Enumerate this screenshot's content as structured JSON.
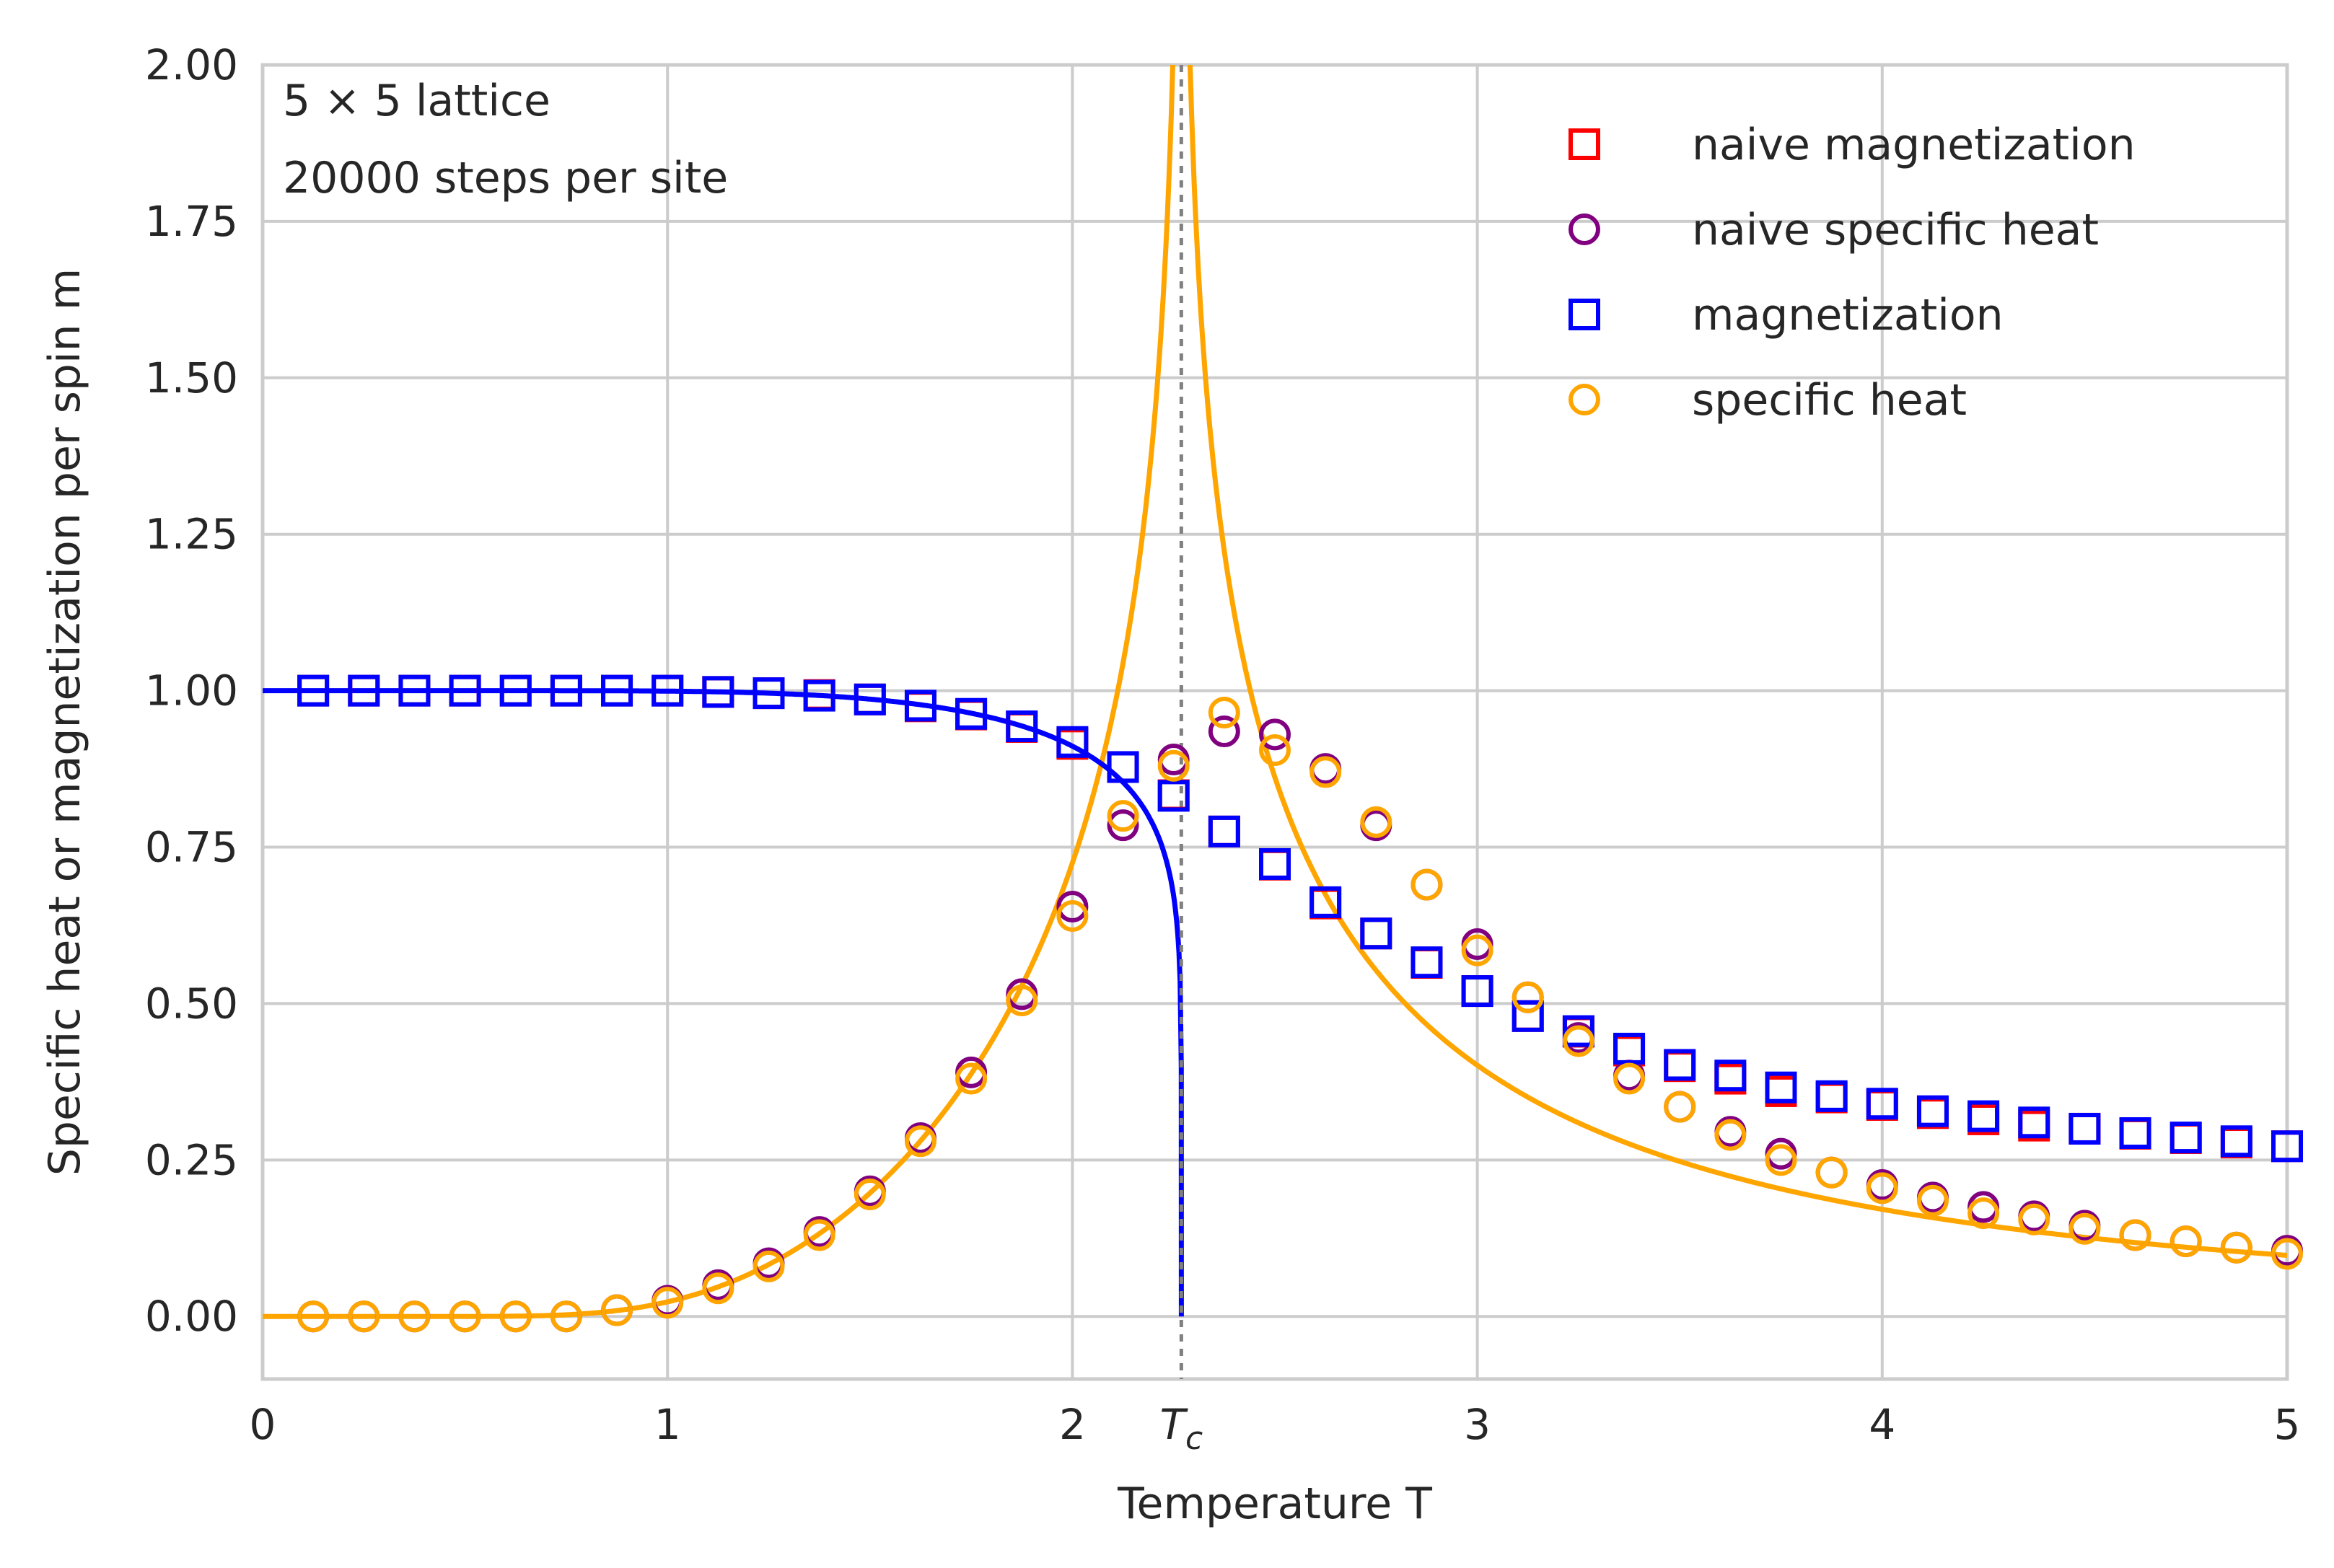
{
  "chart_data": {
    "type": "scatter",
    "xlabel": "Temperature T",
    "ylabel": "Specific heat or magnetization per spin m",
    "xlim": [
      0,
      5
    ],
    "ylim": [
      -0.1,
      2.0
    ],
    "grid": true,
    "legend_position": "top-right",
    "x_ticks": [
      {
        "value": 0,
        "label": "0"
      },
      {
        "value": 1,
        "label": "1"
      },
      {
        "value": 2,
        "label": "2"
      },
      {
        "value": 2.269,
        "label": "T",
        "subscript": "c"
      },
      {
        "value": 3,
        "label": "3"
      },
      {
        "value": 4,
        "label": "4"
      },
      {
        "value": 5,
        "label": "5"
      }
    ],
    "y_ticks": [
      {
        "value": 0.0,
        "label": "0.00"
      },
      {
        "value": 0.25,
        "label": "0.25"
      },
      {
        "value": 0.5,
        "label": "0.50"
      },
      {
        "value": 0.75,
        "label": "0.75"
      },
      {
        "value": 1.0,
        "label": "1.00"
      },
      {
        "value": 1.25,
        "label": "1.25"
      },
      {
        "value": 1.5,
        "label": "1.50"
      },
      {
        "value": 1.75,
        "label": "1.75"
      },
      {
        "value": 2.0,
        "label": "2.00"
      }
    ],
    "annotations": [
      "5 × 5 lattice",
      "20000 steps per site"
    ],
    "critical_temperature": 2.269,
    "series": [
      {
        "name": "naive magnetization",
        "marker": "square",
        "color": "#ff0000",
        "x": [
          0.125,
          0.25,
          0.375,
          0.5,
          0.625,
          0.75,
          0.875,
          1.0,
          1.125,
          1.25,
          1.375,
          1.5,
          1.625,
          1.75,
          1.875,
          2.0,
          2.125,
          2.25,
          2.375,
          2.5,
          2.625,
          2.75,
          2.875,
          3.0,
          3.125,
          3.25,
          3.375,
          3.5,
          3.625,
          3.75,
          3.875,
          4.0,
          4.125,
          4.25,
          4.375,
          4.5,
          4.625,
          4.75,
          4.875,
          5.0
        ],
        "y": [
          1.0,
          1.0,
          1.0,
          1.0,
          1.0,
          1.0,
          1.0,
          1.0,
          0.998,
          0.996,
          0.993,
          0.986,
          0.975,
          0.962,
          0.942,
          0.915,
          0.878,
          0.833,
          0.775,
          0.722,
          0.66,
          0.612,
          0.565,
          0.52,
          0.48,
          0.455,
          0.425,
          0.4,
          0.38,
          0.36,
          0.35,
          0.338,
          0.325,
          0.315,
          0.305,
          0.3,
          0.292,
          0.285,
          0.278,
          0.272
        ]
      },
      {
        "name": "naive specific heat",
        "marker": "circle",
        "color": "#800080",
        "x": [
          0.125,
          0.25,
          0.375,
          0.5,
          0.625,
          0.75,
          0.875,
          1.0,
          1.125,
          1.25,
          1.375,
          1.5,
          1.625,
          1.75,
          1.875,
          2.0,
          2.125,
          2.25,
          2.375,
          2.5,
          2.625,
          2.75,
          2.875,
          3.0,
          3.125,
          3.25,
          3.375,
          3.5,
          3.625,
          3.75,
          3.875,
          4.0,
          4.125,
          4.25,
          4.375,
          4.5,
          4.625,
          4.75,
          4.875,
          5.0
        ],
        "y": [
          0.0,
          0.0,
          0.0,
          0.0,
          0.0,
          0.0,
          0.01,
          0.025,
          0.05,
          0.085,
          0.135,
          0.2,
          0.285,
          0.39,
          0.515,
          0.655,
          0.785,
          0.89,
          0.935,
          0.93,
          0.875,
          0.785,
          0.69,
          0.595,
          0.51,
          0.445,
          0.385,
          0.335,
          0.295,
          0.26,
          0.23,
          0.21,
          0.19,
          0.175,
          0.16,
          0.145,
          0.13,
          0.12,
          0.11,
          0.105
        ]
      },
      {
        "name": "magnetization",
        "marker": "square",
        "color": "#0000ff",
        "x": [
          0.125,
          0.25,
          0.375,
          0.5,
          0.625,
          0.75,
          0.875,
          1.0,
          1.125,
          1.25,
          1.375,
          1.5,
          1.625,
          1.75,
          1.875,
          2.0,
          2.125,
          2.25,
          2.375,
          2.5,
          2.625,
          2.75,
          2.875,
          3.0,
          3.125,
          3.25,
          3.375,
          3.5,
          3.625,
          3.75,
          3.875,
          4.0,
          4.125,
          4.25,
          4.375,
          4.5,
          4.625,
          4.75,
          4.875,
          5.0
        ],
        "y": [
          1.0,
          1.0,
          1.0,
          1.0,
          1.0,
          1.0,
          1.0,
          1.0,
          0.998,
          0.996,
          0.992,
          0.986,
          0.976,
          0.963,
          0.943,
          0.918,
          0.878,
          0.832,
          0.775,
          0.723,
          0.662,
          0.612,
          0.566,
          0.52,
          0.48,
          0.456,
          0.428,
          0.402,
          0.385,
          0.366,
          0.352,
          0.34,
          0.328,
          0.32,
          0.31,
          0.3,
          0.293,
          0.286,
          0.28,
          0.272
        ]
      },
      {
        "name": "specific heat",
        "marker": "circle",
        "color": "#ffa500",
        "x": [
          0.125,
          0.25,
          0.375,
          0.5,
          0.625,
          0.75,
          0.875,
          1.0,
          1.125,
          1.25,
          1.375,
          1.5,
          1.625,
          1.75,
          1.875,
          2.0,
          2.125,
          2.25,
          2.375,
          2.5,
          2.625,
          2.75,
          2.875,
          3.0,
          3.125,
          3.25,
          3.375,
          3.5,
          3.625,
          3.75,
          3.875,
          4.0,
          4.125,
          4.25,
          4.375,
          4.5,
          4.625,
          4.75,
          4.875,
          5.0
        ],
        "y": [
          0.0,
          0.0,
          0.0,
          0.0,
          0.0,
          0.0,
          0.01,
          0.022,
          0.045,
          0.08,
          0.13,
          0.195,
          0.28,
          0.38,
          0.505,
          0.64,
          0.8,
          0.88,
          0.965,
          0.905,
          0.87,
          0.79,
          0.69,
          0.585,
          0.51,
          0.44,
          0.38,
          0.335,
          0.29,
          0.25,
          0.23,
          0.205,
          0.185,
          0.165,
          0.155,
          0.14,
          0.13,
          0.12,
          0.11,
          0.1
        ]
      }
    ],
    "curves": [
      {
        "name": "exact magnetization",
        "color": "#0000ff",
        "function": "onsager_magnetization",
        "x_range": [
          0,
          2.269
        ]
      },
      {
        "name": "exact specific heat",
        "color": "#ffa500",
        "function": "onsager_specific_heat",
        "x_range": [
          0,
          5
        ]
      }
    ]
  },
  "colors": {
    "background": "#ffffff",
    "grid": "#cccccc",
    "spine": "#cccccc",
    "tc_line": "#808080"
  }
}
